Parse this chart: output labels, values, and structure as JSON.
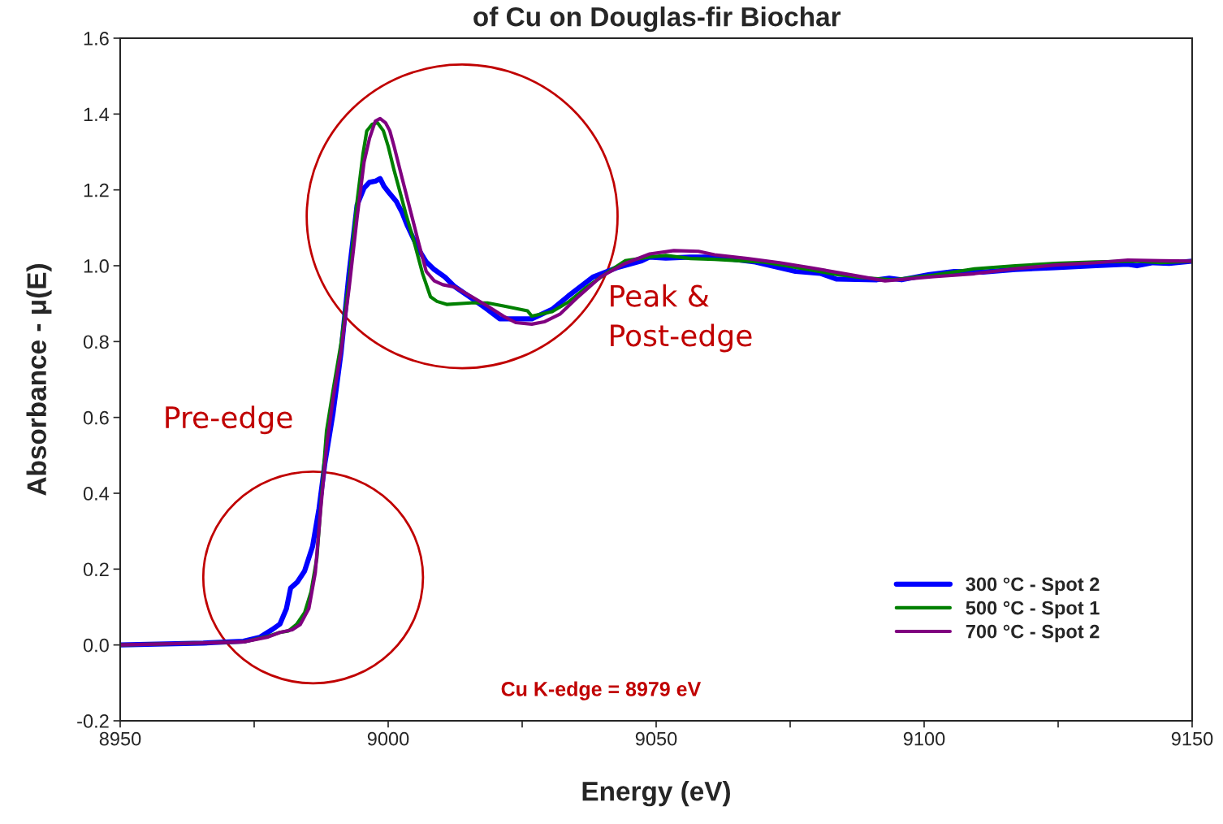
{
  "chart_data": {
    "type": "line",
    "title": "of Cu on Douglas-fir Biochar",
    "xlabel": "Energy (eV)",
    "ylabel": "Absorbance - μ(E)",
    "xlim": [
      8950,
      9150
    ],
    "xticks": [
      8950,
      {
        "value": 8975,
        "label": null
      },
      9000,
      {
        "value": 9025,
        "label": null
      },
      9050,
      {
        "value": 9075,
        "label": null
      },
      9100,
      {
        "value": 9125,
        "label": null
      },
      9150
    ],
    "ylim": [
      -0.2,
      1.6
    ],
    "yticks": [
      {
        "value": -0.2,
        "label": "-0.2"
      },
      {
        "value": 0,
        "label": "0.0"
      },
      {
        "value": 0.2,
        "label": "0.2"
      },
      {
        "value": 0.4,
        "label": "0.4"
      },
      {
        "value": 0.6,
        "label": "0.6"
      },
      {
        "value": 0.8,
        "label": "0.8"
      },
      {
        "value": 1.0,
        "label": "1.0"
      },
      {
        "value": 1.2,
        "label": "1.2"
      },
      {
        "value": 1.4,
        "label": "1.4"
      },
      {
        "value": 1.6,
        "label": "1.6"
      }
    ],
    "grid": false,
    "legend": "bottom right",
    "line_style": "solid",
    "marker": "none",
    "annotations": [
      "Pre-edge",
      "Peak &\nPost-edge",
      "Cu K-edge = 8979 eV"
    ],
    "series": [
      {
        "name": "300 °C - Spot 2",
        "color": "#0000ff",
        "x": [
          8950,
          8965.5,
          8973,
          8976,
          8978.3,
          8979.8,
          8981,
          8981.8,
          8983,
          8984.4,
          8985.9,
          8987.1,
          8988.2,
          8989.7,
          8991.2,
          8992.7,
          8994.2,
          8995.5,
          8996.5,
          8997.6,
          8998.5,
          8999.2,
          9000.3,
          9001.5,
          9002.6,
          9003.6,
          9005.6,
          9007.1,
          9008.6,
          9010.6,
          9012.4,
          9015.5,
          9018.5,
          9020.8,
          9024.5,
          9026.8,
          9030.6,
          9033.6,
          9038.2,
          9042.7,
          9047.3,
          9048.8,
          9051.8,
          9056.4,
          9060.9,
          9068.5,
          9076,
          9080.6,
          9083.6,
          9091.2,
          9093.5,
          9095.8,
          9098,
          9101,
          9105.6,
          9110.9,
          9117,
          9124.5,
          9132,
          9138,
          9139.7,
          9142.7,
          9145.7,
          9150
        ],
        "values": [
          0,
          0.005,
          0.01,
          0.02,
          0.04,
          0.055,
          0.095,
          0.15,
          0.165,
          0.195,
          0.26,
          0.36,
          0.48,
          0.61,
          0.77,
          0.98,
          1.16,
          1.205,
          1.22,
          1.223,
          1.23,
          1.21,
          1.19,
          1.17,
          1.14,
          1.105,
          1.045,
          1.01,
          0.99,
          0.97,
          0.945,
          0.915,
          0.885,
          0.86,
          0.86,
          0.86,
          0.885,
          0.92,
          0.97,
          0.995,
          1.013,
          1.023,
          1.02,
          1.023,
          1.023,
          1.01,
          0.985,
          0.98,
          0.965,
          0.963,
          0.967,
          0.963,
          0.969,
          0.977,
          0.985,
          0.983,
          0.99,
          0.995,
          1.0,
          1.004,
          1.0,
          1.008,
          1.006,
          1.012
        ]
      },
      {
        "name": "500 °C - Spot 1",
        "color": "#008000",
        "x": [
          8950,
          8973,
          8977.6,
          8979.8,
          8981.4,
          8982.9,
          8984.4,
          8985.6,
          8986.7,
          8987.6,
          8988.5,
          8989.7,
          8991.2,
          8992.7,
          8994.2,
          8995.3,
          8996,
          8997,
          8998,
          8999.1,
          9000,
          9001.1,
          9002.1,
          9003.3,
          9004.8,
          9006.4,
          9007.9,
          9009.1,
          9010.9,
          9015.5,
          9018.5,
          9021.5,
          9026,
          9026.8,
          9030.6,
          9033.6,
          9036.7,
          9041.2,
          9044.2,
          9048.8,
          9051.8,
          9056.4,
          9060.9,
          9065.5,
          9070,
          9076,
          9083.6,
          9088.2,
          9094.2,
          9101.8,
          9109.4,
          9117,
          9124.5,
          9132,
          9139.7,
          9144.2,
          9150
        ],
        "values": [
          0,
          0.008,
          0.023,
          0.033,
          0.037,
          0.054,
          0.085,
          0.14,
          0.23,
          0.4,
          0.565,
          0.67,
          0.795,
          0.96,
          1.17,
          1.295,
          1.355,
          1.373,
          1.377,
          1.356,
          1.315,
          1.252,
          1.2,
          1.137,
          1.065,
          0.98,
          0.918,
          0.906,
          0.898,
          0.902,
          0.902,
          0.894,
          0.881,
          0.867,
          0.879,
          0.904,
          0.94,
          0.985,
          1.013,
          1.023,
          1.027,
          1.019,
          1.017,
          1.013,
          1.01,
          0.996,
          0.977,
          0.969,
          0.963,
          0.975,
          0.992,
          1.0,
          1.006,
          1.01,
          1.012,
          1.008,
          1.012
        ]
      },
      {
        "name": "700 °C - Spot 2",
        "color": "#800080",
        "x": [
          8950,
          8973,
          8977.6,
          8979.8,
          8982.1,
          8983.6,
          8985.2,
          8986.4,
          8987.4,
          8988.5,
          8989.7,
          8991.2,
          8992.7,
          8994.2,
          8995.5,
          8996.5,
          8997.6,
          8998.5,
          8999.5,
          9000.3,
          9001.1,
          9002.6,
          9004.1,
          9005.6,
          9007.1,
          9008.6,
          9010.2,
          9012.4,
          9015.5,
          9018.5,
          9021.5,
          9023.8,
          9026.8,
          9029.1,
          9032.1,
          9035.2,
          9039.7,
          9044.2,
          9048.8,
          9053.3,
          9057.9,
          9060.9,
          9067,
          9073,
          9079.1,
          9086.7,
          9092.7,
          9101.8,
          9109.4,
          9117,
          9124.5,
          9132,
          9138,
          9144.2,
          9150
        ],
        "values": [
          0,
          0.008,
          0.021,
          0.033,
          0.04,
          0.054,
          0.096,
          0.19,
          0.356,
          0.523,
          0.648,
          0.773,
          0.94,
          1.127,
          1.273,
          1.335,
          1.381,
          1.388,
          1.377,
          1.356,
          1.315,
          1.231,
          1.148,
          1.065,
          0.985,
          0.96,
          0.95,
          0.944,
          0.919,
          0.894,
          0.867,
          0.85,
          0.846,
          0.852,
          0.873,
          0.915,
          0.971,
          1.006,
          1.031,
          1.04,
          1.038,
          1.029,
          1.019,
          1.008,
          0.994,
          0.975,
          0.96,
          0.971,
          0.979,
          0.992,
          1.002,
          1.008,
          1.015,
          1.013,
          1.012
        ]
      }
    ]
  }
}
